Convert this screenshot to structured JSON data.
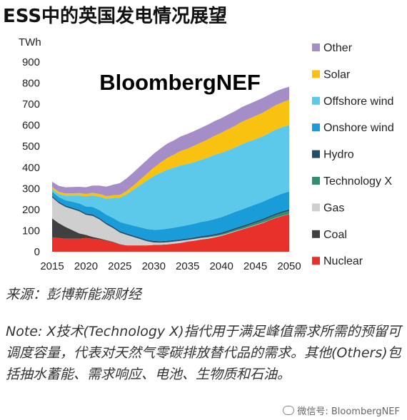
{
  "title": "ESS中的英国发电情况展望",
  "source": "来源：彭博新能源财经",
  "note": "Note: X技术(Technology X)指代用于满足峰值需求所需的预留可调度容量，代表对天然气零碳排放替代品的需求。其他(Others)包括抽水蓄能、需求响应、电池、生物质和石油。",
  "watermark": "微信号: BloombergNEF",
  "chart_data": {
    "type": "area",
    "stacked": true,
    "brand_label": "BloombergNEF",
    "ylabel": "TWh",
    "ylim": [
      0,
      900
    ],
    "yticks": [
      "0",
      "100",
      "200",
      "300",
      "400",
      "500",
      "600",
      "700",
      "800",
      "900"
    ],
    "xlim": [
      2015,
      2050
    ],
    "xticks": [
      "2015",
      "2020",
      "2025",
      "2030",
      "2035",
      "2040",
      "2045",
      "2050"
    ],
    "grid": false,
    "legend_position": "right",
    "x": [
      2015,
      2016,
      2017,
      2018,
      2019,
      2020,
      2021,
      2022,
      2023,
      2024,
      2025,
      2026,
      2027,
      2028,
      2029,
      2030,
      2031,
      2032,
      2033,
      2034,
      2035,
      2036,
      2037,
      2038,
      2039,
      2040,
      2041,
      2042,
      2043,
      2044,
      2045,
      2046,
      2047,
      2048,
      2049,
      2050
    ],
    "series": [
      {
        "name": "Nuclear",
        "color": "#e8312a",
        "values": [
          68,
          65,
          62,
          62,
          62,
          65,
          62,
          58,
          52,
          45,
          35,
          30,
          30,
          30,
          30,
          32,
          33,
          35,
          38,
          42,
          48,
          52,
          58,
          62,
          68,
          75,
          85,
          95,
          105,
          115,
          125,
          135,
          148,
          160,
          170,
          178
        ]
      },
      {
        "name": "Coal",
        "color": "#404040",
        "values": [
          90,
          70,
          55,
          40,
          25,
          15,
          8,
          5,
          3,
          2,
          1,
          0,
          0,
          0,
          0,
          0,
          0,
          0,
          0,
          0,
          0,
          0,
          0,
          0,
          0,
          0,
          0,
          0,
          0,
          0,
          0,
          0,
          0,
          0,
          0,
          0
        ]
      },
      {
        "name": "Gas",
        "color": "#cfcfcf",
        "values": [
          100,
          95,
          95,
          100,
          105,
          95,
          100,
          90,
          75,
          65,
          55,
          50,
          40,
          30,
          20,
          12,
          10,
          10,
          10,
          10,
          8,
          8,
          7,
          6,
          5,
          4,
          3,
          3,
          2,
          2,
          2,
          2,
          1,
          1,
          1,
          1
        ]
      },
      {
        "name": "Technology X",
        "color": "#2f8f6f",
        "values": [
          0,
          0,
          0,
          0,
          0,
          0,
          0,
          0,
          0,
          0,
          0,
          0,
          0,
          0,
          0,
          0,
          0,
          0,
          0,
          0,
          0,
          1,
          2,
          3,
          4,
          5,
          6,
          7,
          8,
          9,
          10,
          11,
          12,
          13,
          14,
          15
        ]
      },
      {
        "name": "Hydro",
        "color": "#1f4e6e",
        "values": [
          7,
          7,
          7,
          7,
          7,
          7,
          7,
          7,
          7,
          7,
          7,
          7,
          7,
          7,
          7,
          7,
          7,
          7,
          7,
          7,
          7,
          7,
          7,
          7,
          7,
          7,
          7,
          7,
          7,
          7,
          7,
          7,
          7,
          7,
          7,
          7
        ]
      },
      {
        "name": "Onshore wind",
        "color": "#1a9cd8",
        "values": [
          20,
          22,
          25,
          28,
          30,
          33,
          35,
          37,
          39,
          41,
          43,
          45,
          47,
          49,
          51,
          53,
          55,
          57,
          59,
          61,
          63,
          65,
          67,
          69,
          71,
          73,
          75,
          77,
          78,
          79,
          80,
          81,
          82,
          83,
          84,
          85
        ]
      },
      {
        "name": "Offshore wind",
        "color": "#5cc8ea",
        "values": [
          12,
          15,
          22,
          30,
          38,
          48,
          55,
          65,
          75,
          95,
          115,
          140,
          170,
          200,
          230,
          255,
          270,
          280,
          285,
          290,
          290,
          292,
          295,
          300,
          305,
          305,
          305,
          305,
          310,
          310,
          310,
          310,
          312,
          315,
          315,
          315
        ]
      },
      {
        "name": "Solar",
        "color": "#f9c211",
        "values": [
          10,
          10,
          10,
          10,
          11,
          11,
          12,
          12,
          13,
          13,
          14,
          16,
          20,
          26,
          32,
          40,
          48,
          56,
          62,
          68,
          73,
          78,
          82,
          86,
          90,
          95,
          100,
          103,
          106,
          108,
          110,
          112,
          114,
          116,
          118,
          120
        ]
      },
      {
        "name": "Other",
        "color": "#a58ec8",
        "values": [
          25,
          28,
          30,
          30,
          30,
          32,
          35,
          40,
          45,
          50,
          55,
          60,
          62,
          64,
          65,
          66,
          67,
          68,
          68,
          69,
          70,
          70,
          70,
          70,
          70,
          70,
          70,
          70,
          70,
          70,
          70,
          70,
          68,
          66,
          64,
          62
        ]
      }
    ],
    "legend_order": [
      "Other",
      "Solar",
      "Offshore wind",
      "Onshore wind",
      "Hydro",
      "Technology X",
      "Gas",
      "Coal",
      "Nuclear"
    ]
  }
}
